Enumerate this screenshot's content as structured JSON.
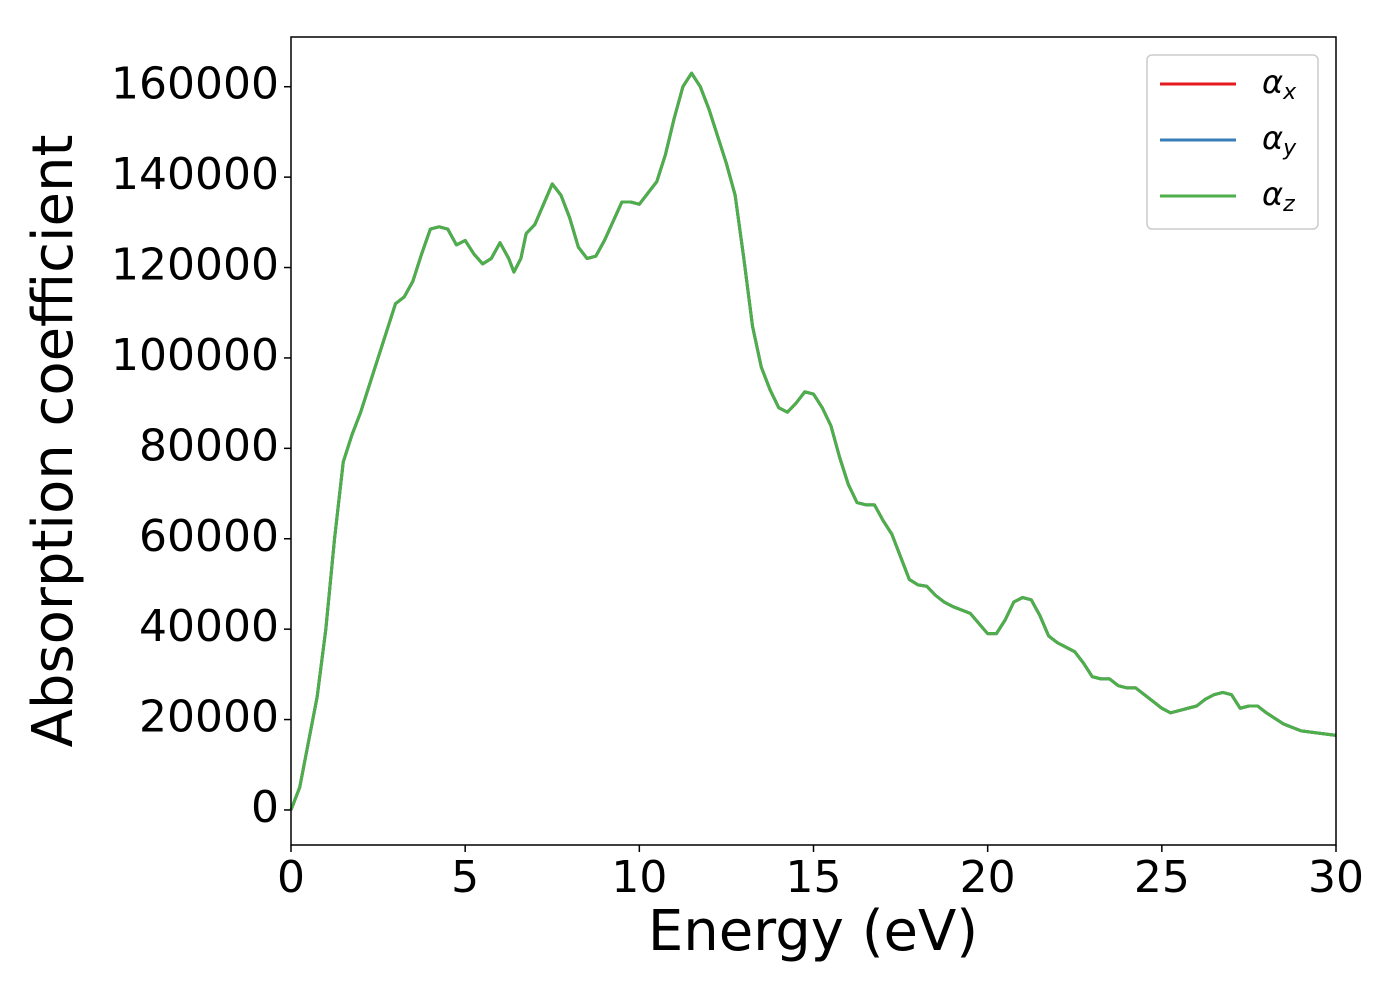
{
  "chart_data": {
    "type": "line",
    "xlabel": "Energy (eV)",
    "ylabel": "Absorption coefficient",
    "x": [
      0,
      0.25,
      0.5,
      0.75,
      1.0,
      1.25,
      1.5,
      1.75,
      2.0,
      2.5,
      3.0,
      3.25,
      3.5,
      3.75,
      4.0,
      4.25,
      4.5,
      4.75,
      5.0,
      5.25,
      5.5,
      5.75,
      6.0,
      6.25,
      6.4,
      6.6,
      6.75,
      7.0,
      7.25,
      7.5,
      7.75,
      8.0,
      8.25,
      8.5,
      8.75,
      9.0,
      9.5,
      9.75,
      10.0,
      10.25,
      10.5,
      10.75,
      11.0,
      11.25,
      11.5,
      11.75,
      12.0,
      12.5,
      12.75,
      13.0,
      13.25,
      13.5,
      13.75,
      14.0,
      14.25,
      14.5,
      14.75,
      15.0,
      15.25,
      15.5,
      15.75,
      16.0,
      16.25,
      16.5,
      16.75,
      17.0,
      17.25,
      17.5,
      17.75,
      18.0,
      18.25,
      18.5,
      18.75,
      19.0,
      19.5,
      20.0,
      20.25,
      20.5,
      20.75,
      21.0,
      21.25,
      21.5,
      21.75,
      22.0,
      22.5,
      22.75,
      23.0,
      23.25,
      23.5,
      23.75,
      24.0,
      24.25,
      24.5,
      24.75,
      25.0,
      25.25,
      25.5,
      25.75,
      26.0,
      26.25,
      26.5,
      26.75,
      27.0,
      27.25,
      27.5,
      27.75,
      28.0,
      28.5,
      29.0,
      29.5,
      30.0
    ],
    "series": [
      {
        "name": "αx",
        "color": "#e41a1c",
        "values": [
          0,
          5000,
          15000,
          25000,
          40000,
          60000,
          77000,
          83000,
          88000,
          100000,
          112000,
          113500,
          117000,
          123000,
          128500,
          129000,
          128500,
          125000,
          126000,
          123000,
          120800,
          122000,
          125500,
          122000,
          119000,
          122000,
          127500,
          129500,
          134000,
          138500,
          136000,
          131000,
          124500,
          122000,
          122500,
          126000,
          134500,
          134500,
          134000,
          136500,
          139000,
          145000,
          153000,
          160000,
          163000,
          160000,
          155000,
          143000,
          136000,
          122000,
          107000,
          98000,
          93000,
          89000,
          88000,
          90000,
          92500,
          92000,
          89000,
          85000,
          78000,
          72000,
          68000,
          67500,
          67500,
          64000,
          61000,
          56000,
          51000,
          49800,
          49500,
          47500,
          46000,
          45000,
          43500,
          39000,
          39000,
          42000,
          46000,
          47000,
          46500,
          43000,
          38500,
          37000,
          35000,
          32500,
          29500,
          29000,
          29000,
          27500,
          27000,
          27000,
          25500,
          24000,
          22500,
          21500,
          22000,
          22500,
          23000,
          24500,
          25500,
          26000,
          25500,
          22500,
          23000,
          23000,
          21500,
          19000,
          17500,
          17000,
          16500
        ]
      },
      {
        "name": "αy",
        "color": "#377eb8",
        "values": [
          0,
          5000,
          15000,
          25000,
          40000,
          60000,
          77000,
          83000,
          88000,
          100000,
          112000,
          113500,
          117000,
          123000,
          128500,
          129000,
          128500,
          125000,
          126000,
          123000,
          120800,
          122000,
          125500,
          122000,
          119000,
          122000,
          127500,
          129500,
          134000,
          138500,
          136000,
          131000,
          124500,
          122000,
          122500,
          126000,
          134500,
          134500,
          134000,
          136500,
          139000,
          145000,
          153000,
          160000,
          163000,
          160000,
          155000,
          143000,
          136000,
          122000,
          107000,
          98000,
          93000,
          89000,
          88000,
          90000,
          92500,
          92000,
          89000,
          85000,
          78000,
          72000,
          68000,
          67500,
          67500,
          64000,
          61000,
          56000,
          51000,
          49800,
          49500,
          47500,
          46000,
          45000,
          43500,
          39000,
          39000,
          42000,
          46000,
          47000,
          46500,
          43000,
          38500,
          37000,
          35000,
          32500,
          29500,
          29000,
          29000,
          27500,
          27000,
          27000,
          25500,
          24000,
          22500,
          21500,
          22000,
          22500,
          23000,
          24500,
          25500,
          26000,
          25500,
          22500,
          23000,
          23000,
          21500,
          19000,
          17500,
          17000,
          16500
        ]
      },
      {
        "name": "αz",
        "color": "#4daf4a",
        "values": [
          0,
          5000,
          15000,
          25000,
          40000,
          60000,
          77000,
          83000,
          88000,
          100000,
          112000,
          113500,
          117000,
          123000,
          128500,
          129000,
          128500,
          125000,
          126000,
          123000,
          120800,
          122000,
          125500,
          122000,
          119000,
          122000,
          127500,
          129500,
          134000,
          138500,
          136000,
          131000,
          124500,
          122000,
          122500,
          126000,
          134500,
          134500,
          134000,
          136500,
          139000,
          145000,
          153000,
          160000,
          163000,
          160000,
          155000,
          143000,
          136000,
          122000,
          107000,
          98000,
          93000,
          89000,
          88000,
          90000,
          92500,
          92000,
          89000,
          85000,
          78000,
          72000,
          68000,
          67500,
          67500,
          64000,
          61000,
          56000,
          51000,
          49800,
          49500,
          47500,
          46000,
          45000,
          43500,
          39000,
          39000,
          42000,
          46000,
          47000,
          46500,
          43000,
          38500,
          37000,
          35000,
          32500,
          29500,
          29000,
          29000,
          27500,
          27000,
          27000,
          25500,
          24000,
          22500,
          21500,
          22000,
          22500,
          23000,
          24500,
          25500,
          26000,
          25500,
          22500,
          23000,
          23000,
          21500,
          19000,
          17500,
          17000,
          16500
        ]
      }
    ],
    "xlim": [
      0,
      30
    ],
    "xticks": [
      0,
      5,
      10,
      15,
      20,
      25,
      30
    ],
    "ylim": [
      -7750,
      171000
    ],
    "yticks": [
      0,
      20000,
      40000,
      60000,
      80000,
      100000,
      120000,
      140000,
      160000
    ],
    "legend": "upper right",
    "grid": false
  }
}
